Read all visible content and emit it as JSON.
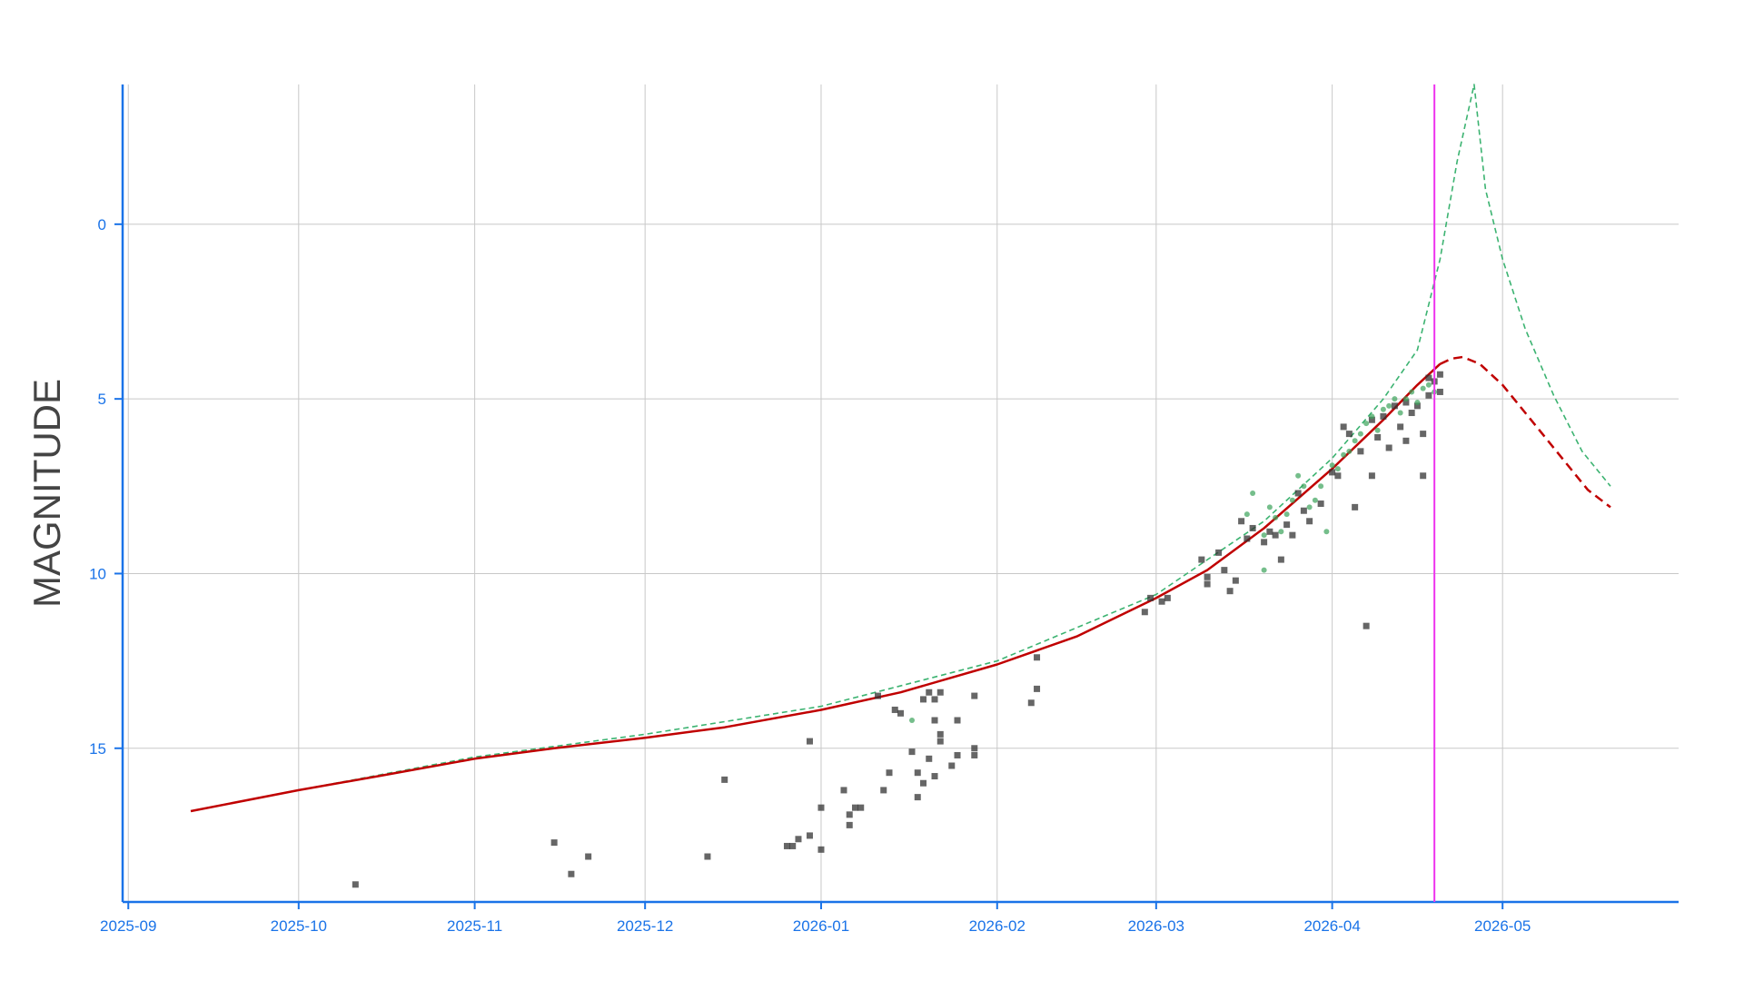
{
  "chart_data": {
    "type": "scatter",
    "title": "",
    "xlabel": "",
    "ylabel": "MAGNITUDE",
    "y_inverted": true,
    "grid": true,
    "legend": "none",
    "xlim": [
      "2025-08-31",
      "2026-06-01"
    ],
    "ylim": [
      -4,
      19.4
    ],
    "x_ticks": [
      "2025-09",
      "2025-10",
      "2025-11",
      "2025-12",
      "2026-01",
      "2026-02",
      "2026-03",
      "2026-04",
      "2026-05"
    ],
    "x_tick_values": [
      "2025-09-01",
      "2025-10-01",
      "2025-11-01",
      "2025-12-01",
      "2026-01-01",
      "2026-02-01",
      "2026-03-01",
      "2026-04-01",
      "2026-05-01"
    ],
    "y_ticks": [
      "0",
      "5",
      "10",
      "15"
    ],
    "y_tick_values": [
      0,
      5,
      10,
      15
    ],
    "colors": {
      "axis": "#1a73e8",
      "tick_label": "#1a73e8",
      "axis_title": "#444444",
      "grid": "#c8c8c8",
      "fit_line": "#c00000",
      "alt_fit_line": "#3cb371",
      "observations_dark": "#333333",
      "observations_green": "#3aa35a",
      "now_marker": "#ee33ee"
    },
    "current_date_marker": "2026-04-19",
    "series": [
      {
        "kind": "line",
        "style": "solid",
        "points": [
          [
            "2025-09-12",
            16.8
          ],
          [
            "2025-10-01",
            16.2
          ],
          [
            "2025-10-15",
            15.8
          ],
          [
            "2025-11-01",
            15.3
          ],
          [
            "2025-11-15",
            15.0
          ],
          [
            "2025-12-01",
            14.7
          ],
          [
            "2025-12-15",
            14.4
          ],
          [
            "2026-01-01",
            13.9
          ],
          [
            "2026-01-15",
            13.4
          ],
          [
            "2026-02-01",
            12.6
          ],
          [
            "2026-02-15",
            11.8
          ],
          [
            "2026-03-01",
            10.7
          ],
          [
            "2026-03-10",
            9.9
          ],
          [
            "2026-03-20",
            8.7
          ],
          [
            "2026-04-01",
            7.0
          ],
          [
            "2026-04-10",
            5.6
          ],
          [
            "2026-04-16",
            4.6
          ],
          [
            "2026-04-20",
            4.0
          ]
        ]
      },
      {
        "kind": "line",
        "style": "dashed",
        "points": [
          [
            "2026-04-20",
            4.0
          ],
          [
            "2026-04-22",
            3.85
          ],
          [
            "2026-04-24",
            3.8
          ],
          [
            "2026-04-27",
            4.0
          ],
          [
            "2026-05-01",
            4.6
          ],
          [
            "2026-05-06",
            5.6
          ],
          [
            "2026-05-11",
            6.6
          ],
          [
            "2026-05-16",
            7.6
          ],
          [
            "2026-05-20",
            8.1
          ]
        ]
      },
      {
        "kind": "line",
        "style": "dashed",
        "points": [
          [
            "2025-09-12",
            16.8
          ],
          [
            "2025-10-01",
            16.2
          ],
          [
            "2025-11-01",
            15.25
          ],
          [
            "2025-12-01",
            14.6
          ],
          [
            "2026-01-01",
            13.8
          ],
          [
            "2026-02-01",
            12.5
          ],
          [
            "2026-03-01",
            10.6
          ],
          [
            "2026-03-20",
            8.5
          ],
          [
            "2026-04-01",
            6.7
          ],
          [
            "2026-04-10",
            5.0
          ],
          [
            "2026-04-16",
            3.6
          ],
          [
            "2026-04-20",
            1.0
          ],
          [
            "2026-04-23",
            -1.8
          ],
          [
            "2026-04-26",
            -4.0
          ],
          [
            "2026-04-28",
            -1.0
          ],
          [
            "2026-05-01",
            1.0
          ],
          [
            "2026-05-05",
            3.0
          ],
          [
            "2026-05-10",
            4.9
          ],
          [
            "2026-05-15",
            6.5
          ],
          [
            "2026-05-20",
            7.5
          ]
        ]
      },
      {
        "kind": "scatter",
        "marker": "square",
        "points": [
          [
            "2025-10-11",
            18.9
          ],
          [
            "2025-11-15",
            17.7
          ],
          [
            "2025-11-18",
            18.6
          ],
          [
            "2025-11-21",
            18.1
          ],
          [
            "2025-12-12",
            18.1
          ],
          [
            "2025-12-15",
            15.9
          ],
          [
            "2025-12-26",
            17.8
          ],
          [
            "2025-12-27",
            17.8
          ],
          [
            "2025-12-28",
            17.6
          ],
          [
            "2025-12-30",
            17.5
          ],
          [
            "2025-12-30",
            14.8
          ],
          [
            "2026-01-01",
            17.9
          ],
          [
            "2026-01-01",
            16.7
          ],
          [
            "2026-01-05",
            16.2
          ],
          [
            "2026-01-06",
            17.2
          ],
          [
            "2026-01-06",
            16.9
          ],
          [
            "2026-01-07",
            16.7
          ],
          [
            "2026-01-08",
            16.7
          ],
          [
            "2026-01-11",
            13.5
          ],
          [
            "2026-01-12",
            16.2
          ],
          [
            "2026-01-13",
            15.7
          ],
          [
            "2026-01-14",
            13.9
          ],
          [
            "2026-01-15",
            14.0
          ],
          [
            "2026-01-17",
            15.1
          ],
          [
            "2026-01-18",
            16.4
          ],
          [
            "2026-01-18",
            15.7
          ],
          [
            "2026-01-19",
            16.0
          ],
          [
            "2026-01-19",
            13.6
          ],
          [
            "2026-01-20",
            15.3
          ],
          [
            "2026-01-20",
            13.4
          ],
          [
            "2026-01-21",
            15.8
          ],
          [
            "2026-01-21",
            14.2
          ],
          [
            "2026-01-21",
            13.6
          ],
          [
            "2026-01-22",
            14.6
          ],
          [
            "2026-01-22",
            14.8
          ],
          [
            "2026-01-22",
            13.4
          ],
          [
            "2026-01-24",
            15.5
          ],
          [
            "2026-01-25",
            14.2
          ],
          [
            "2026-01-25",
            15.2
          ],
          [
            "2026-01-28",
            15.0
          ],
          [
            "2026-01-28",
            13.5
          ],
          [
            "2026-01-28",
            15.2
          ],
          [
            "2026-02-07",
            13.7
          ],
          [
            "2026-02-08",
            12.4
          ],
          [
            "2026-02-08",
            13.3
          ],
          [
            "2026-02-27",
            11.1
          ],
          [
            "2026-02-28",
            10.7
          ],
          [
            "2026-03-02",
            10.8
          ],
          [
            "2026-03-03",
            10.7
          ],
          [
            "2026-03-09",
            9.6
          ],
          [
            "2026-03-10",
            10.1
          ],
          [
            "2026-03-10",
            10.3
          ],
          [
            "2026-03-12",
            9.4
          ],
          [
            "2026-03-13",
            9.9
          ],
          [
            "2026-03-14",
            10.5
          ],
          [
            "2026-03-15",
            10.2
          ],
          [
            "2026-03-16",
            8.5
          ],
          [
            "2026-03-17",
            9.0
          ],
          [
            "2026-03-18",
            8.7
          ],
          [
            "2026-03-20",
            9.1
          ],
          [
            "2026-03-21",
            8.8
          ],
          [
            "2026-03-22",
            8.9
          ],
          [
            "2026-03-23",
            9.6
          ],
          [
            "2026-03-24",
            8.6
          ],
          [
            "2026-03-25",
            8.9
          ],
          [
            "2026-03-26",
            7.7
          ],
          [
            "2026-03-27",
            8.2
          ],
          [
            "2026-03-28",
            8.5
          ],
          [
            "2026-03-30",
            8.0
          ],
          [
            "2026-04-01",
            7.1
          ],
          [
            "2026-04-02",
            7.2
          ],
          [
            "2026-04-03",
            5.8
          ],
          [
            "2026-04-04",
            6.0
          ],
          [
            "2026-04-05",
            8.1
          ],
          [
            "2026-04-06",
            6.5
          ],
          [
            "2026-04-07",
            11.5
          ],
          [
            "2026-04-08",
            5.6
          ],
          [
            "2026-04-08",
            7.2
          ],
          [
            "2026-04-09",
            6.1
          ],
          [
            "2026-04-10",
            5.5
          ],
          [
            "2026-04-11",
            6.4
          ],
          [
            "2026-04-12",
            5.2
          ],
          [
            "2026-04-13",
            5.8
          ],
          [
            "2026-04-14",
            5.1
          ],
          [
            "2026-04-14",
            6.2
          ],
          [
            "2026-04-15",
            5.4
          ],
          [
            "2026-04-16",
            5.2
          ],
          [
            "2026-04-17",
            6.0
          ],
          [
            "2026-04-17",
            7.2
          ],
          [
            "2026-04-18",
            4.9
          ],
          [
            "2026-04-18",
            4.4
          ],
          [
            "2026-04-19",
            4.5
          ],
          [
            "2026-04-20",
            4.3
          ],
          [
            "2026-04-20",
            4.8
          ]
        ]
      },
      {
        "kind": "scatter",
        "marker": "circle",
        "points": [
          [
            "2026-01-17",
            14.2
          ],
          [
            "2026-03-17",
            8.3
          ],
          [
            "2026-03-18",
            7.7
          ],
          [
            "2026-03-20",
            8.9
          ],
          [
            "2026-03-20",
            9.9
          ],
          [
            "2026-03-21",
            8.1
          ],
          [
            "2026-03-22",
            8.4
          ],
          [
            "2026-03-23",
            8.8
          ],
          [
            "2026-03-24",
            8.3
          ],
          [
            "2026-03-25",
            7.9
          ],
          [
            "2026-03-26",
            7.2
          ],
          [
            "2026-03-27",
            7.5
          ],
          [
            "2026-03-28",
            8.1
          ],
          [
            "2026-03-29",
            7.9
          ],
          [
            "2026-03-30",
            7.5
          ],
          [
            "2026-03-31",
            8.8
          ],
          [
            "2026-04-01",
            6.9
          ],
          [
            "2026-04-02",
            7.0
          ],
          [
            "2026-04-03",
            6.6
          ],
          [
            "2026-04-04",
            6.5
          ],
          [
            "2026-04-05",
            6.2
          ],
          [
            "2026-04-06",
            6.0
          ],
          [
            "2026-04-07",
            5.7
          ],
          [
            "2026-04-08",
            5.5
          ],
          [
            "2026-04-09",
            5.9
          ],
          [
            "2026-04-10",
            5.3
          ],
          [
            "2026-04-11",
            5.2
          ],
          [
            "2026-04-12",
            5.0
          ],
          [
            "2026-04-13",
            5.4
          ],
          [
            "2026-04-14",
            5.0
          ],
          [
            "2026-04-15",
            4.8
          ],
          [
            "2026-04-16",
            5.1
          ],
          [
            "2026-04-17",
            4.7
          ],
          [
            "2026-04-18",
            4.6
          ],
          [
            "2026-04-19",
            4.8
          ]
        ]
      }
    ]
  }
}
